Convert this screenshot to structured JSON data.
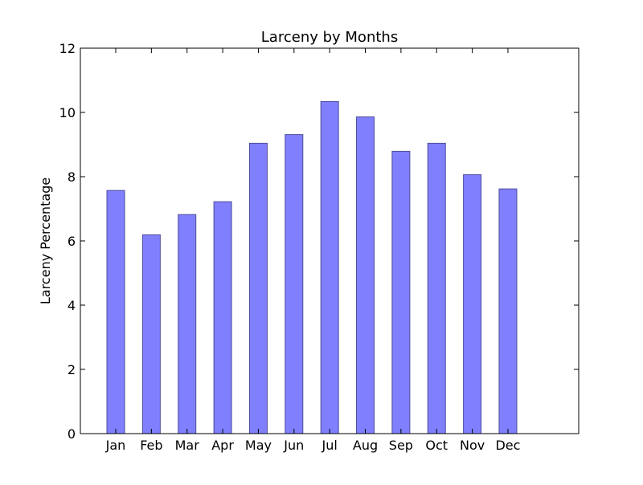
{
  "chart_data": {
    "type": "bar",
    "title": "Larceny by Months",
    "xlabel": "",
    "ylabel": "Larceny Percentage",
    "categories": [
      "Jan",
      "Feb",
      "Mar",
      "Apr",
      "May",
      "Jun",
      "Jul",
      "Aug",
      "Sep",
      "Oct",
      "Nov",
      "Dec"
    ],
    "values": [
      7.57,
      6.19,
      6.82,
      7.22,
      9.04,
      9.31,
      10.34,
      9.86,
      8.79,
      9.04,
      8.06,
      7.62
    ],
    "ylim": [
      0,
      12
    ],
    "yticks": [
      "0",
      "2",
      "4",
      "6",
      "8",
      "10",
      "12"
    ],
    "grid": false,
    "bar_color": "#8080ff",
    "bar_edge_color": "#4d4d99"
  }
}
